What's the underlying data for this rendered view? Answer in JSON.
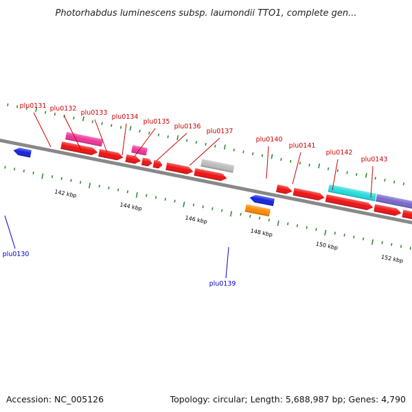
{
  "title": "Photorhabdus luminescens subsp. laumondii TTO1, complete gen...",
  "footer": {
    "accession": "Accession: NC_005126",
    "summary": "Topology: circular; Length: 5,688,987 bp; Genes: 4,790"
  },
  "colors": {
    "backbone": "#888888",
    "forward_tick": "#2e8b2e",
    "reverse_tick": "#2e8b2e",
    "forward_label": "#cc0000",
    "reverse_label": "#0000cc",
    "cds_red": "#ee1111",
    "pink": "#ee3399",
    "grey": "#bbbbbb",
    "cyan": "#22dddd",
    "purple": "#7766cc",
    "blue": "#1122dd",
    "orange": "#ff8800"
  },
  "kbp_labels": [
    "142 kbp",
    "144 kbp",
    "146 kbp",
    "148 kbp",
    "150 kbp",
    "152 kbp"
  ],
  "gene_labels": [
    {
      "name": "plu0131",
      "strand": "forward"
    },
    {
      "name": "plu0132",
      "strand": "forward"
    },
    {
      "name": "plu0133",
      "strand": "forward"
    },
    {
      "name": "plu0134",
      "strand": "forward"
    },
    {
      "name": "plu0135",
      "strand": "forward"
    },
    {
      "name": "plu0136",
      "strand": "forward"
    },
    {
      "name": "plu0137",
      "strand": "forward"
    },
    {
      "name": "plu0140",
      "strand": "forward"
    },
    {
      "name": "plu0141",
      "strand": "forward"
    },
    {
      "name": "plu0142",
      "strand": "forward"
    },
    {
      "name": "plu0143",
      "strand": "forward"
    },
    {
      "name": "plu0130",
      "strand": "reverse"
    },
    {
      "name": "plu0139",
      "strand": "reverse"
    }
  ]
}
